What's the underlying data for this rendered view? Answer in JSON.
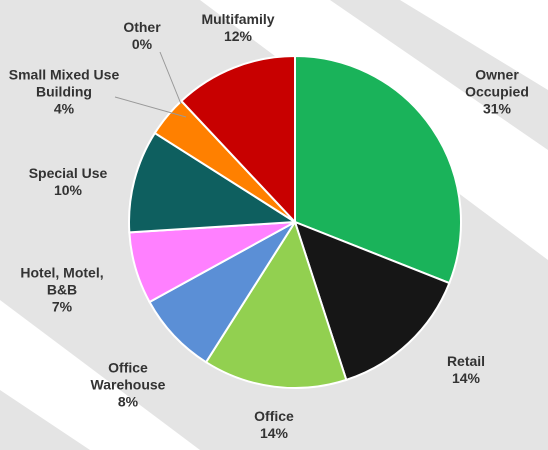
{
  "chart_data": {
    "type": "pie",
    "categories": [
      "Owner Occupied",
      "Retail",
      "Office",
      "Office Warehouse",
      "Hotel, Motel, B&B",
      "Special Use",
      "Small Mixed Use Building",
      "Other",
      "Multifamily"
    ],
    "values": [
      31,
      14,
      14,
      8,
      7,
      10,
      4,
      0,
      12
    ],
    "value_labels": [
      "31%",
      "14%",
      "14%",
      "8%",
      "7%",
      "10%",
      "4%",
      "0%",
      "12%"
    ],
    "colors": [
      "#1ab35a",
      "#161616",
      "#92d050",
      "#5b8fd6",
      "#ff80ff",
      "#0e5f5f",
      "#ff8000",
      "#cccccc",
      "#c80000"
    ]
  }
}
